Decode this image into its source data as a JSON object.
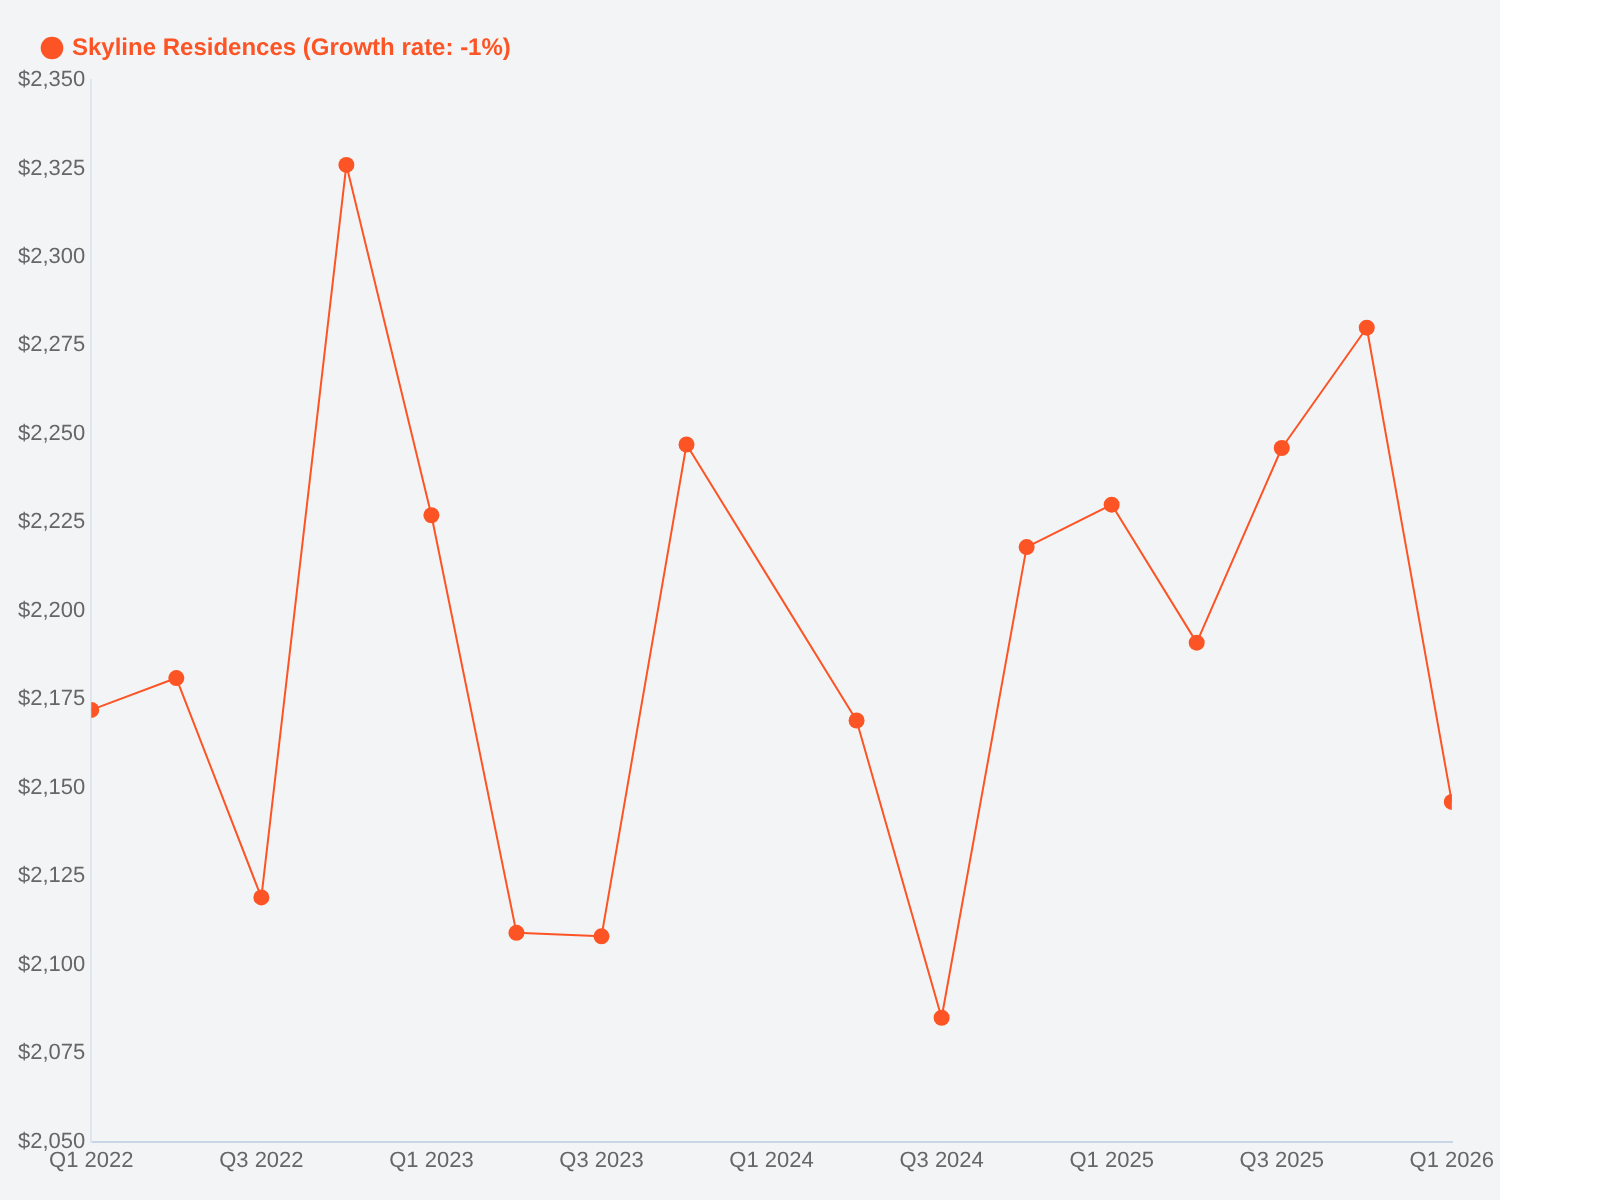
{
  "chart_data": {
    "type": "line",
    "x": [
      "2022-01",
      "2022-04",
      "2022-07",
      "2022-10",
      "2023-01",
      "2023-04",
      "2023-07",
      "2023-10",
      "2024-04",
      "2024-07",
      "2024-10",
      "2025-01",
      "2025-04",
      "2025-07",
      "2025-10",
      "2026-01"
    ],
    "series": [
      {
        "name": "Skyline Residences (Growth rate: -1%)",
        "color": "#fc5424",
        "values": [
          2172,
          2181,
          2119,
          2326,
          2227,
          2109,
          2108,
          2247,
          2169,
          2085,
          2218,
          2230,
          2191,
          2246,
          2280,
          2146
        ]
      }
    ],
    "xlim": [
      "2022-01",
      "2026-01"
    ],
    "xticks": [
      {
        "value": "2022-01",
        "label": "Q1 2022"
      },
      {
        "value": "2022-07",
        "label": "Q3 2022"
      },
      {
        "value": "2023-01",
        "label": "Q1 2023"
      },
      {
        "value": "2023-07",
        "label": "Q3 2023"
      },
      {
        "value": "2024-01",
        "label": "Q1 2024"
      },
      {
        "value": "2024-07",
        "label": "Q3 2024"
      },
      {
        "value": "2025-01",
        "label": "Q1 2025"
      },
      {
        "value": "2025-07",
        "label": "Q3 2025"
      },
      {
        "value": "2026-01",
        "label": "Q1 2026"
      }
    ],
    "ylim": [
      2050,
      2350
    ],
    "yticks": [
      {
        "value": 2050,
        "label": "$2,050"
      },
      {
        "value": 2075,
        "label": "$2,075"
      },
      {
        "value": 2100,
        "label": "$2,100"
      },
      {
        "value": 2125,
        "label": "$2,125"
      },
      {
        "value": 2150,
        "label": "$2,150"
      },
      {
        "value": 2175,
        "label": "$2,175"
      },
      {
        "value": 2200,
        "label": "$2,200"
      },
      {
        "value": 2225,
        "label": "$2,225"
      },
      {
        "value": 2250,
        "label": "$2,250"
      },
      {
        "value": 2275,
        "label": "$2,275"
      },
      {
        "value": 2300,
        "label": "$2,300"
      },
      {
        "value": 2325,
        "label": "$2,325"
      },
      {
        "value": 2350,
        "label": "$2,350"
      }
    ],
    "grid": false,
    "legend": "top left",
    "marker": "circle",
    "line_style": "solid"
  }
}
